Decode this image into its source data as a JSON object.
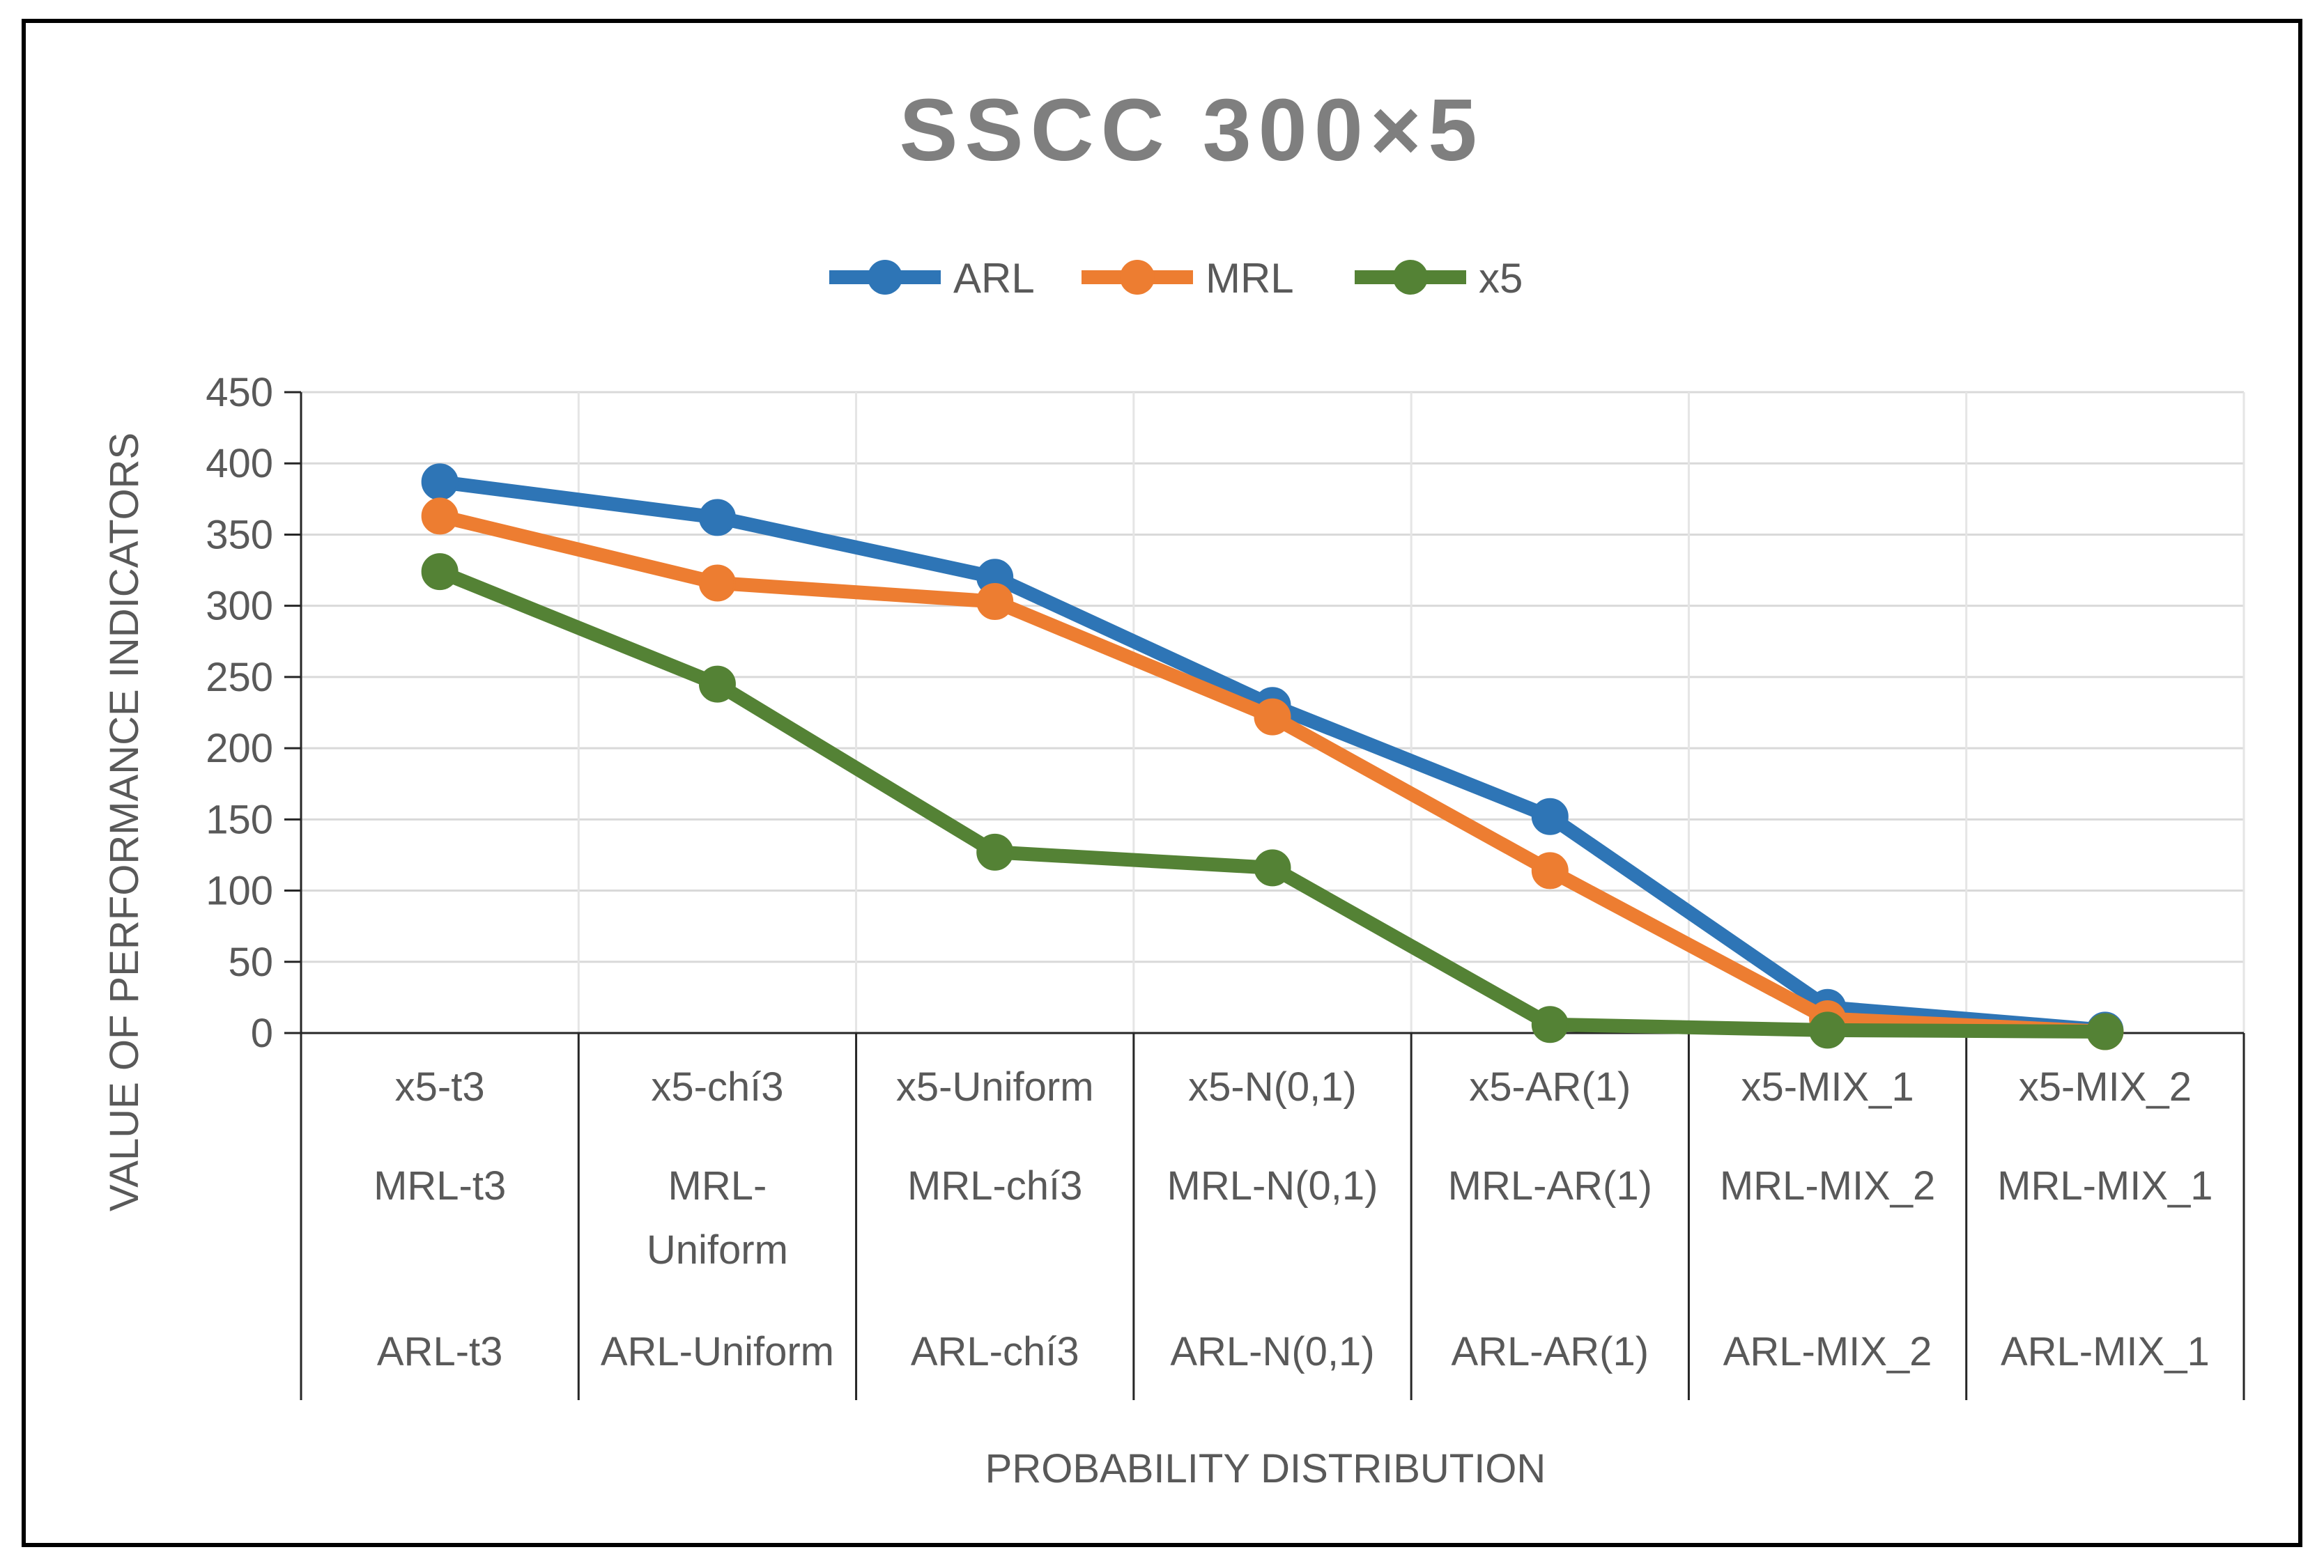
{
  "chart_data": {
    "type": "line",
    "title": "SSCC 300×5",
    "xlabel": "PROBABILITY DISTRIBUTION",
    "ylabel": "VALUE OF PERFORMANCE INDICATORS",
    "ylim": [
      0,
      450
    ],
    "yticks": [
      0,
      50,
      100,
      150,
      200,
      250,
      300,
      350,
      400,
      450
    ],
    "grid": true,
    "legend_position": "top-center",
    "category_rows": [
      {
        "name": "x5",
        "labels": [
          [
            "x5-t3"
          ],
          [
            "x5-chí3"
          ],
          [
            "x5-Uniform"
          ],
          [
            "x5-N(0,1)"
          ],
          [
            "x5-AR(1)"
          ],
          [
            "x5-MIX_1"
          ],
          [
            "x5-MIX_2"
          ]
        ]
      },
      {
        "name": "MRL",
        "labels": [
          [
            "MRL-t3"
          ],
          [
            "MRL-",
            "Uniform"
          ],
          [
            "MRL-chí3"
          ],
          [
            "MRL-N(0,1)"
          ],
          [
            "MRL-AR(1)"
          ],
          [
            "MRL-MIX_2"
          ],
          [
            "MRL-MIX_1"
          ]
        ]
      },
      {
        "name": "ARL",
        "labels": [
          [
            "ARL-t3"
          ],
          [
            "ARL-Uniform"
          ],
          [
            "ARL-chí3"
          ],
          [
            "ARL-N(0,1)"
          ],
          [
            "ARL-AR(1)"
          ],
          [
            "ARL-MIX_2"
          ],
          [
            "ARL-MIX_1"
          ]
        ]
      }
    ],
    "series": [
      {
        "name": "ARL",
        "color": "#2e75b6",
        "values": [
          387,
          362,
          320,
          230,
          152,
          18,
          2
        ]
      },
      {
        "name": "MRL",
        "color": "#ed7d31",
        "values": [
          363,
          316,
          303,
          222,
          114,
          10,
          1
        ]
      },
      {
        "name": "x5",
        "color": "#548235",
        "values": [
          324,
          245,
          127,
          116,
          6,
          2,
          1
        ]
      }
    ]
  }
}
